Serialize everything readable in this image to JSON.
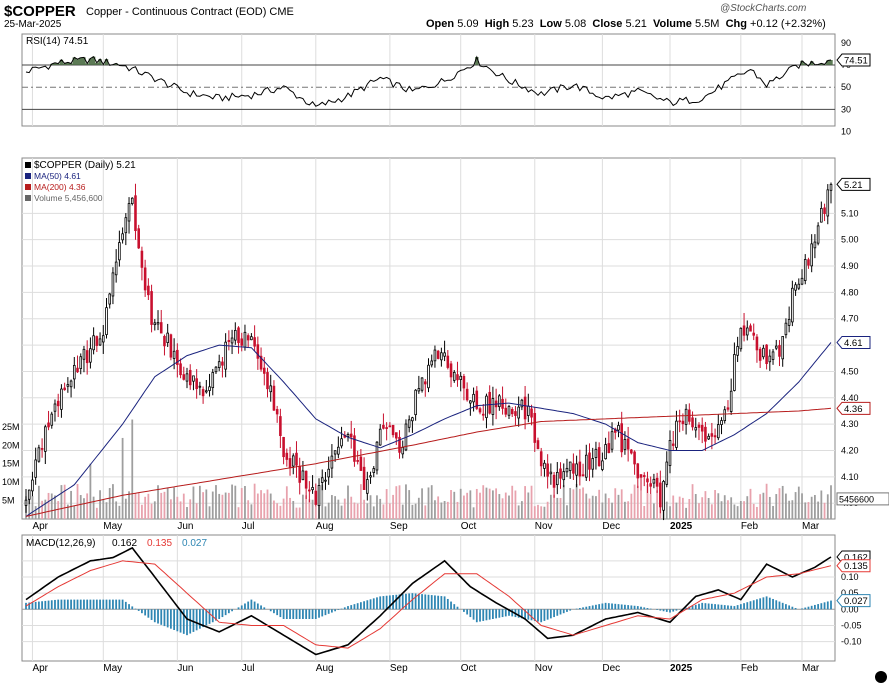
{
  "header": {
    "symbol": "$COPPER",
    "subtitle": "Copper - Continuous Contract (EOD) CME",
    "date": "25-Mar-2025",
    "watermark": "@StockCharts.com",
    "quote": {
      "open_label": "Open",
      "open": "5.09",
      "high_label": "High",
      "high": "5.23",
      "low_label": "Low",
      "low": "5.08",
      "close_label": "Close",
      "close": "5.21",
      "volume_label": "Volume",
      "volume": "5.5M",
      "chg_label": "Chg",
      "chg": "+0.12 (+2.32%)"
    }
  },
  "colors": {
    "up": "#000000",
    "down": "#c8102e",
    "ma50": "#1a237e",
    "ma200": "#b71c1c",
    "vol_up": "#9e9e9e",
    "vol_down": "#e8a2ad",
    "rsi_fill": "#4a6b42",
    "macd_hist": "#2e86b3",
    "grid": "#dddddd"
  },
  "chart_data": [
    {
      "type": "line",
      "title": "RSI(14) 74.51",
      "legend": [
        {
          "label": "RSI(14) 74.51"
        }
      ],
      "ylim": [
        15,
        98
      ],
      "y_ticks": [
        90,
        70,
        50,
        30,
        10
      ],
      "ref_lines": [
        70,
        50,
        30
      ],
      "last_value_label": "74.51",
      "series": [
        {
          "name": "RSI(14)",
          "x": [
            0,
            10,
            20,
            30,
            40,
            50,
            60,
            70,
            80,
            90,
            100,
            110,
            120,
            130,
            140,
            150,
            160,
            170,
            180,
            190,
            200,
            210,
            220,
            225,
            230,
            240,
            250
          ],
          "values": [
            64,
            72,
            75,
            70,
            58,
            45,
            40,
            43,
            50,
            32,
            42,
            58,
            46,
            56,
            74,
            56,
            44,
            52,
            40,
            46,
            36,
            40,
            58,
            66,
            52,
            70,
            74.51
          ]
        }
      ]
    },
    {
      "type": "candlestick",
      "legend": [
        {
          "label": "$COPPER (Daily) 5.21"
        },
        {
          "label": "MA(50) 4.61"
        },
        {
          "label": "MA(200) 4.36"
        },
        {
          "label": "Volume 5,456,600"
        }
      ],
      "x_tick_labels": [
        "Apr",
        "May",
        "Jun",
        "Jul",
        "Aug",
        "Sep",
        "Oct",
        "Nov",
        "Dec",
        "2025",
        "Feb",
        "Mar"
      ],
      "x_ticks": [
        2,
        24,
        47,
        67,
        90,
        113,
        135,
        158,
        179,
        200,
        222,
        241
      ],
      "ylim": [
        3.94,
        5.31
      ],
      "y_ticks": [
        5.1,
        5.0,
        4.9,
        4.8,
        4.7,
        4.6,
        4.5,
        4.4,
        4.3,
        4.2,
        4.1,
        4.0
      ],
      "x_count": 251,
      "close_key": {
        "x": [
          0,
          8,
          14,
          20,
          24,
          28,
          33,
          36,
          39,
          45,
          50,
          55,
          60,
          65,
          68,
          75,
          80,
          86,
          90,
          95,
          100,
          106,
          110,
          116,
          122,
          128,
          134,
          138,
          142,
          148,
          155,
          160,
          165,
          168,
          172,
          178,
          184,
          189,
          194,
          197,
          200,
          205,
          210,
          214,
          217,
          222,
          226,
          230,
          234,
          238,
          244,
          247,
          250
        ],
        "values": [
          4.04,
          4.34,
          4.5,
          4.58,
          4.64,
          4.92,
          5.18,
          4.86,
          4.7,
          4.59,
          4.48,
          4.39,
          4.55,
          4.62,
          4.65,
          4.46,
          4.22,
          4.09,
          4.02,
          4.19,
          4.24,
          4.05,
          4.28,
          4.22,
          4.43,
          4.58,
          4.48,
          4.4,
          4.36,
          4.38,
          4.36,
          4.18,
          4.08,
          4.14,
          4.12,
          4.18,
          4.26,
          4.14,
          4.1,
          4.03,
          4.22,
          4.35,
          4.3,
          4.22,
          4.33,
          4.65,
          4.6,
          4.56,
          4.58,
          4.78,
          4.98,
          5.1,
          5.21
        ]
      },
      "series": [
        {
          "name": "MA(50)",
          "last_value_label": "4.61",
          "x": [
            0,
            15,
            30,
            40,
            50,
            60,
            70,
            80,
            90,
            100,
            110,
            120,
            130,
            140,
            150,
            160,
            170,
            180,
            190,
            200,
            210,
            220,
            230,
            240,
            250
          ],
          "values": [
            3.95,
            4.07,
            4.3,
            4.48,
            4.56,
            4.6,
            4.59,
            4.46,
            4.32,
            4.25,
            4.21,
            4.26,
            4.32,
            4.37,
            4.38,
            4.36,
            4.34,
            4.3,
            4.23,
            4.2,
            4.2,
            4.26,
            4.34,
            4.46,
            4.61
          ]
        },
        {
          "name": "MA(200)",
          "last_value_label": "4.36",
          "x": [
            0,
            30,
            60,
            90,
            120,
            140,
            160,
            180,
            200,
            220,
            240,
            250
          ],
          "values": [
            3.95,
            4.03,
            4.09,
            4.15,
            4.22,
            4.27,
            4.31,
            4.32,
            4.33,
            4.34,
            4.35,
            4.36
          ]
        },
        {
          "name": "Volume",
          "last_value_label": "5456600",
          "y_ticks": [
            25,
            20,
            15,
            10,
            5
          ],
          "y_tick_labels": [
            "25M",
            "20M",
            "15M",
            "10M",
            "5M"
          ],
          "ylim_millions": [
            0,
            38
          ],
          "typical_millions": 6,
          "spikes": [
            {
              "x": 33,
              "value_millions": 27
            },
            {
              "x": 30,
              "value_millions": 22
            },
            {
              "x": 20,
              "value_millions": 15
            }
          ]
        }
      ]
    },
    {
      "type": "line",
      "title": "MACD(12,26,9) 0.162, 0.135, 0.027",
      "legend": [
        {
          "label": "MACD(12,26,9)"
        },
        {
          "label": "0.162"
        },
        {
          "label": "0.135"
        },
        {
          "label": "0.027"
        }
      ],
      "ylim": [
        -0.16,
        0.23
      ],
      "y_ticks": [
        0.15,
        0.1,
        0.05,
        0.0,
        -0.05,
        -0.1
      ],
      "x_tick_labels": [
        "Apr",
        "May",
        "Jun",
        "Jul",
        "Aug",
        "Sep",
        "Oct",
        "Nov",
        "Dec",
        "2025",
        "Feb",
        "Mar"
      ],
      "series": [
        {
          "name": "MACD",
          "last_value_label": "0.162",
          "x": [
            0,
            10,
            20,
            27,
            33,
            40,
            50,
            60,
            70,
            80,
            90,
            100,
            110,
            120,
            130,
            138,
            146,
            155,
            162,
            170,
            180,
            190,
            200,
            208,
            215,
            222,
            230,
            238,
            245,
            250
          ],
          "values": [
            0.03,
            0.1,
            0.15,
            0.16,
            0.19,
            0.1,
            -0.03,
            -0.07,
            -0.02,
            -0.08,
            -0.14,
            -0.11,
            -0.02,
            0.08,
            0.15,
            0.07,
            0.02,
            -0.03,
            -0.09,
            -0.08,
            -0.03,
            -0.01,
            -0.04,
            0.04,
            0.06,
            0.03,
            0.14,
            0.1,
            0.13,
            0.162
          ]
        },
        {
          "name": "Signal",
          "last_value_label": "0.135",
          "x": [
            0,
            10,
            20,
            30,
            40,
            50,
            60,
            70,
            80,
            90,
            100,
            110,
            120,
            130,
            140,
            150,
            160,
            170,
            180,
            190,
            200,
            210,
            220,
            230,
            240,
            250
          ],
          "values": [
            0.01,
            0.07,
            0.12,
            0.15,
            0.14,
            0.05,
            -0.04,
            -0.05,
            -0.05,
            -0.11,
            -0.12,
            -0.06,
            0.03,
            0.11,
            0.11,
            0.04,
            -0.05,
            -0.08,
            -0.05,
            -0.02,
            -0.03,
            0.03,
            0.05,
            0.1,
            0.11,
            0.135
          ]
        },
        {
          "name": "Histogram",
          "last_value_label": "0.027",
          "type": "bar",
          "x": [
            0,
            10,
            20,
            30,
            40,
            50,
            60,
            70,
            80,
            90,
            100,
            110,
            120,
            130,
            140,
            150,
            160,
            170,
            180,
            190,
            200,
            210,
            220,
            230,
            240,
            250
          ],
          "values": [
            0.02,
            0.03,
            0.03,
            0.03,
            -0.04,
            -0.08,
            -0.03,
            0.03,
            -0.03,
            -0.03,
            0.01,
            0.04,
            0.05,
            0.04,
            -0.04,
            -0.02,
            -0.04,
            0.0,
            0.02,
            0.01,
            -0.01,
            0.02,
            0.01,
            0.04,
            0.0,
            0.027
          ]
        }
      ]
    }
  ]
}
